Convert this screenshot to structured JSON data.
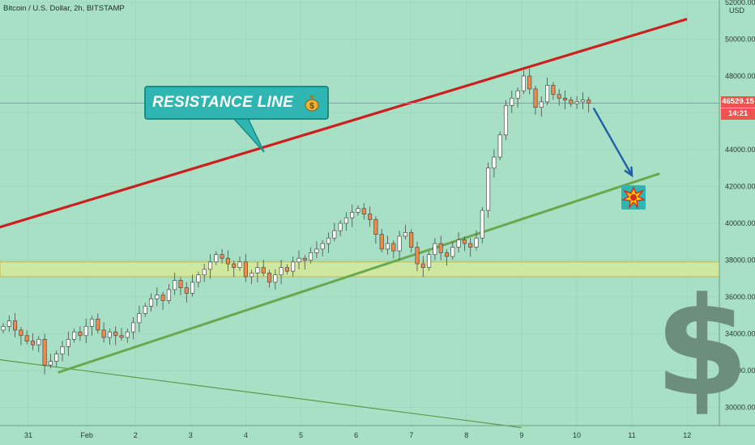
{
  "header": {
    "title": "Bitcoin / U.S. Dollar, 2h, BITSTAMP"
  },
  "price_axis": {
    "currency": "USD"
  },
  "last_price": {
    "value": "46529.15",
    "countdown": "14:21",
    "partial_label": "46"
  },
  "annotations": {
    "resistance_label": "RESISTANCE LINE"
  },
  "colors": {
    "background": "#a7e0c4",
    "up_candle": "#ffffff",
    "down_candle": "#f08a4b",
    "resistance": "#cc1f1f",
    "support": "#6aa84f",
    "support_zone": "#cfe8a0",
    "arrow": "#1f5fa8",
    "callout": "#2fb6b2"
  },
  "chart_data": {
    "type": "candlestick",
    "title": "Bitcoin / U.S. Dollar, 2h, BITSTAMP",
    "y_ticks": [
      "30000.00",
      "32000.00",
      "34000.00",
      "36000.00",
      "38000.00",
      "40000.00",
      "42000.00",
      "44000.00",
      "46000.00",
      "48000.00",
      "50000.00",
      "52000.00"
    ],
    "x_ticks": [
      "31",
      "Feb",
      "2",
      "3",
      "4",
      "5",
      "6",
      "7",
      "8",
      "9",
      "10",
      "11",
      "12"
    ],
    "ylim": [
      28800,
      52000
    ],
    "close_series": [
      34400,
      34700,
      34200,
      33900,
      33600,
      33400,
      33700,
      32300,
      32500,
      32900,
      33300,
      33700,
      34100,
      33900,
      34400,
      34800,
      34200,
      33800,
      34100,
      33900,
      33800,
      34100,
      34600,
      35100,
      35500,
      35900,
      36100,
      35800,
      36400,
      36900,
      36500,
      36200,
      36800,
      37200,
      37500,
      37900,
      38300,
      38100,
      37800,
      37600,
      37900,
      37100,
      37300,
      37600,
      37300,
      36800,
      37200,
      37600,
      37400,
      37900,
      38100,
      38000,
      38400,
      38600,
      38900,
      39200,
      39600,
      40000,
      40300,
      40600,
      40800,
      40500,
      40200,
      39400,
      38600,
      38900,
      38500,
      39300,
      39500,
      38700,
      37800,
      37600,
      38300,
      38900,
      38400,
      38200,
      38700,
      39100,
      38900,
      38700,
      39200,
      40700,
      43000,
      43600,
      44800,
      46400,
      46800,
      47200,
      48000,
      47300,
      46300,
      46600,
      47500,
      47000,
      46800,
      46700,
      46500,
      46600,
      46700,
      46529
    ],
    "resistance_line": {
      "from": {
        "date": "Jan 30",
        "price": 39300
      },
      "to": {
        "date": "Feb 12",
        "price": 51100
      }
    },
    "support_line": {
      "from": {
        "date": "Jan 31.6",
        "price": 31900
      },
      "to": {
        "date": "Feb 11.5",
        "price": 42700
      }
    },
    "lower_line": {
      "from": {
        "date": "Jan 30",
        "price": 32800
      },
      "to": {
        "date": "Feb 9",
        "price": 28900
      }
    },
    "support_zone": [
      37100,
      37900
    ],
    "projection": {
      "to": {
        "date": "Feb 11",
        "price": 42600
      }
    }
  }
}
